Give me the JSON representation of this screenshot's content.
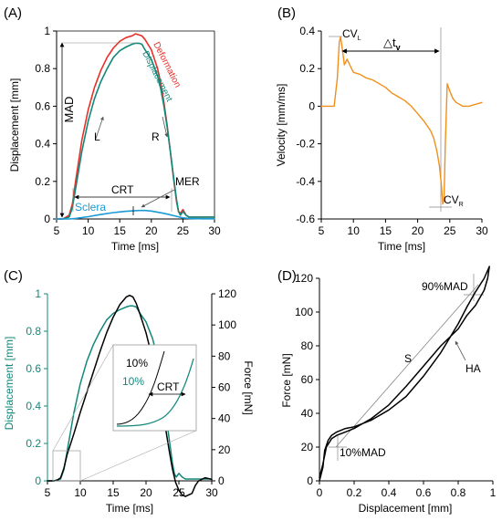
{
  "chart_data": [
    {
      "panel_label": "(A)",
      "type": "line",
      "xlabel": "Time [ms]",
      "ylabel": "Displacement [mm]",
      "xlim": [
        5,
        30
      ],
      "ylim": [
        0,
        1
      ],
      "xticks": [
        "5",
        "10",
        "15",
        "20",
        "25",
        "30"
      ],
      "yticks": [
        "0",
        "0.2",
        "0.4",
        "0.6",
        "0.8",
        "1"
      ],
      "grid": false,
      "series": [
        {
          "name": "Deformation",
          "color": "#e8302a",
          "x": [
            5,
            6,
            7,
            7.5,
            8,
            9,
            10,
            11,
            12,
            13,
            14,
            15,
            16,
            17,
            17.5,
            18,
            18.5,
            19,
            20,
            21,
            21.5,
            22,
            22.5,
            23,
            23.5,
            24,
            24.3,
            24.6,
            25,
            25.5,
            26,
            27,
            28,
            29,
            30
          ],
          "y": [
            0,
            0,
            0.02,
            0.08,
            0.2,
            0.42,
            0.58,
            0.7,
            0.79,
            0.86,
            0.91,
            0.945,
            0.965,
            0.975,
            0.985,
            0.98,
            0.975,
            0.955,
            0.9,
            0.8,
            0.72,
            0.62,
            0.5,
            0.36,
            0.22,
            0.09,
            0.04,
            0.03,
            0.05,
            0.02,
            0.01,
            0.01,
            0.01,
            0.01,
            0.01
          ]
        },
        {
          "name": "Displacement",
          "color": "#12887a",
          "x": [
            5,
            6,
            7,
            7.5,
            8,
            9,
            10,
            11,
            12,
            13,
            14,
            15,
            16,
            17,
            17.5,
            18,
            18.5,
            19,
            20,
            21,
            21.5,
            22,
            22.5,
            23,
            23.5,
            24,
            24.3,
            24.6,
            25,
            25.5,
            26,
            27,
            28,
            29,
            30
          ],
          "y": [
            0,
            0,
            0.01,
            0.06,
            0.16,
            0.36,
            0.52,
            0.64,
            0.73,
            0.8,
            0.86,
            0.895,
            0.915,
            0.93,
            0.935,
            0.935,
            0.93,
            0.9,
            0.85,
            0.76,
            0.69,
            0.6,
            0.49,
            0.36,
            0.23,
            0.1,
            0.04,
            0.02,
            0.04,
            0.02,
            0.01,
            0.01,
            0.01,
            0.01,
            0.01
          ]
        },
        {
          "name": "Sclera",
          "color": "#1b9ad6",
          "x": [
            5,
            7,
            8,
            10,
            12,
            14,
            16,
            18,
            19,
            20,
            22,
            24,
            25,
            26,
            28,
            30
          ],
          "y": [
            0,
            0,
            0.003,
            0.012,
            0.024,
            0.034,
            0.041,
            0.045,
            0.045,
            0.042,
            0.03,
            0.014,
            0.006,
            0.003,
            0.001,
            0.001
          ]
        }
      ],
      "annotations": {
        "mad": "MAD",
        "crt": "CRT",
        "mer": "MER",
        "l": "L",
        "r": "R"
      }
    },
    {
      "panel_label": "(B)",
      "type": "line",
      "xlabel": "Time [ms]",
      "ylabel": "Velocity [mm/ms]",
      "xlim": [
        5,
        30
      ],
      "ylim": [
        -0.6,
        0.4
      ],
      "xticks": [
        "5",
        "10",
        "15",
        "20",
        "25",
        "30"
      ],
      "yticks": [
        "-0.6",
        "-0.4",
        "-0.2",
        "0",
        "0.2",
        "0.4"
      ],
      "grid": false,
      "series": [
        {
          "color": "#f0901c",
          "x": [
            5,
            7,
            7.5,
            7.8,
            8,
            8.3,
            8.6,
            9,
            10,
            11,
            12,
            13,
            14,
            15,
            16,
            17,
            18,
            19,
            20,
            21,
            22,
            22.5,
            23,
            23.4,
            23.7,
            23.9,
            24.1,
            24.3,
            24.6,
            25,
            25.5,
            26,
            27,
            28,
            29,
            30
          ],
          "y": [
            0,
            0,
            0.15,
            0.34,
            0.37,
            0.3,
            0.22,
            0.25,
            0.18,
            0.17,
            0.15,
            0.14,
            0.12,
            0.1,
            0.07,
            0.05,
            0.03,
            0.0,
            -0.04,
            -0.08,
            -0.13,
            -0.17,
            -0.24,
            -0.32,
            -0.42,
            -0.52,
            -0.5,
            -0.2,
            0.12,
            0.08,
            0.04,
            0.02,
            0.0,
            0.0,
            0.01,
            0.02
          ]
        }
      ],
      "annotations": {
        "cvl_main": "CV",
        "cvl_sub": "L",
        "cvr_main": "CV",
        "cvr_sub": "R",
        "dt_delta": "△t",
        "dt_sub": "v"
      }
    },
    {
      "panel_label": "(C)",
      "type": "line",
      "xlabel": "Time [ms]",
      "ylabel": "Displacement [mm]",
      "y2label": "Force [mN]",
      "xlim": [
        5,
        30
      ],
      "ylim": [
        0,
        1
      ],
      "y2lim": [
        0,
        120
      ],
      "xticks": [
        "5",
        "10",
        "15",
        "20",
        "25",
        "30"
      ],
      "yticks": [
        "0",
        "0.2",
        "0.4",
        "0.6",
        "0.8",
        "1"
      ],
      "y2ticks": [
        "0",
        "20",
        "40",
        "60",
        "80",
        "100",
        "120"
      ],
      "grid": false,
      "series": [
        {
          "axis": "left",
          "color": "#12887a",
          "x": [
            5,
            6,
            7,
            7.5,
            8,
            9,
            10,
            11,
            12,
            13,
            14,
            15,
            16,
            17,
            17.5,
            18,
            18.5,
            19,
            20,
            21,
            21.5,
            22,
            22.5,
            23,
            23.5,
            24,
            24.3,
            24.6,
            25,
            25.5,
            26,
            27,
            28,
            29,
            30
          ],
          "y": [
            0,
            0,
            0.01,
            0.06,
            0.16,
            0.36,
            0.52,
            0.64,
            0.73,
            0.8,
            0.86,
            0.895,
            0.915,
            0.93,
            0.935,
            0.935,
            0.93,
            0.9,
            0.85,
            0.76,
            0.69,
            0.6,
            0.49,
            0.36,
            0.23,
            0.1,
            0.04,
            0.02,
            0.04,
            0.02,
            0.01,
            0.01,
            0.01,
            0.01,
            0.01
          ]
        },
        {
          "axis": "right",
          "color": "#000000",
          "x": [
            5,
            6,
            6.5,
            7,
            7.5,
            8,
            9,
            10,
            11,
            12,
            13,
            14,
            15,
            16,
            17,
            17.5,
            18,
            18.5,
            19,
            20,
            21,
            22,
            22.5,
            23,
            23.5,
            24,
            24.5,
            25,
            25.5,
            26,
            27,
            27.5,
            28,
            29,
            30
          ],
          "y": [
            0,
            0,
            0.5,
            2,
            8,
            17,
            30,
            44,
            57,
            70,
            83,
            95,
            105,
            113,
            118,
            119,
            118,
            114,
            108,
            95,
            78,
            58,
            46,
            33,
            20,
            8,
            -1,
            -6,
            -9,
            -10,
            -8,
            -3,
            0,
            2,
            1
          ]
        }
      ],
      "inset": {
        "label_black": "10%",
        "label_teal": "10%",
        "crt": "CRT"
      }
    },
    {
      "panel_label": "(D)",
      "type": "line",
      "xlabel": "Displacement [mm]",
      "ylabel": "Force [mN]",
      "xlim": [
        0,
        1
      ],
      "ylim": [
        0,
        120
      ],
      "xticks": [
        "0",
        "0.2",
        "0.4",
        "0.6",
        "0.8",
        "1"
      ],
      "yticks": [
        "0",
        "20",
        "40",
        "60",
        "80",
        "100",
        "120"
      ],
      "grid": false,
      "series": [
        {
          "color": "#000000",
          "x": [
            0,
            0.02,
            0.03,
            0.05,
            0.07,
            0.1,
            0.15,
            0.2,
            0.3,
            0.4,
            0.5,
            0.6,
            0.7,
            0.8,
            0.85,
            0.9,
            0.95,
            0.98,
            0.97,
            0.95,
            0.9,
            0.85,
            0.8,
            0.7,
            0.6,
            0.5,
            0.4,
            0.3,
            0.2,
            0.15,
            0.1,
            0.07,
            0.04,
            0.02,
            0
          ],
          "y": [
            0,
            8,
            18,
            24,
            27,
            29,
            31,
            32,
            36,
            42,
            50,
            62,
            76,
            93,
            103,
            112,
            120,
            127,
            120,
            113,
            104,
            98,
            90,
            80,
            68,
            56,
            45,
            37,
            31,
            29,
            27,
            25,
            20,
            10,
            2
          ]
        }
      ],
      "annotations": {
        "mad90": "90%MAD",
        "mad10": "10%MAD",
        "s": "S",
        "ha": "HA"
      }
    }
  ]
}
